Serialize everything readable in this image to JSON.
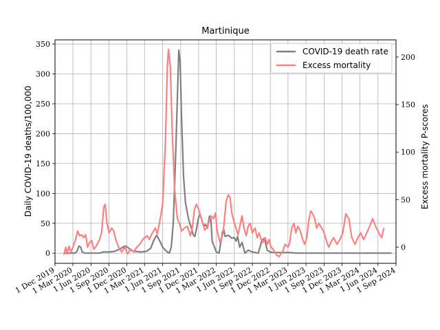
{
  "chart_data": {
    "type": "line",
    "title": "Martinique",
    "ylabel_left": "Daily COVID-19 deaths/100,000",
    "ylabel_right": "Excess mortality P-scores",
    "x_range": [
      "2019-12-01",
      "2024-09-01"
    ],
    "x_ticks": [
      {
        "date": "2019-12-01",
        "label": "1 Dec 2019"
      },
      {
        "date": "2020-03-01",
        "label": "1 Mar 2020"
      },
      {
        "date": "2020-06-01",
        "label": "1 Jun 2020"
      },
      {
        "date": "2020-09-01",
        "label": "1 Sep 2020"
      },
      {
        "date": "2020-12-01",
        "label": "1 Dec 2020"
      },
      {
        "date": "2021-03-01",
        "label": "1 Mar 2021"
      },
      {
        "date": "2021-06-01",
        "label": "1 Jun 2021"
      },
      {
        "date": "2021-09-01",
        "label": "1 Sep 2021"
      },
      {
        "date": "2021-12-01",
        "label": "1 Dec 2021"
      },
      {
        "date": "2022-03-01",
        "label": "1 Mar 2022"
      },
      {
        "date": "2022-06-01",
        "label": "1 Jun 2022"
      },
      {
        "date": "2022-09-01",
        "label": "1 Sep 2022"
      },
      {
        "date": "2022-12-01",
        "label": "1 Dec 2022"
      },
      {
        "date": "2023-03-01",
        "label": "1 Mar 2023"
      },
      {
        "date": "2023-06-01",
        "label": "1 Jun 2023"
      },
      {
        "date": "2023-09-01",
        "label": "1 Sep 2023"
      },
      {
        "date": "2023-12-01",
        "label": "1 Dec 2023"
      },
      {
        "date": "2024-03-01",
        "label": "1 Mar 2024"
      },
      {
        "date": "2024-06-01",
        "label": "1 Jun 2024"
      },
      {
        "date": "2024-09-01",
        "label": "1 Sep 2024"
      }
    ],
    "y_left_range": [
      -17,
      357
    ],
    "y_left_ticks": [
      0,
      50,
      100,
      150,
      200,
      250,
      300,
      350
    ],
    "y_right_range": [
      -17,
      218
    ],
    "y_right_ticks": [
      0,
      50,
      100,
      150,
      200
    ],
    "grid": true,
    "legend_position": "top-right",
    "series": [
      {
        "name": "COVID-19 death rate",
        "axis": "left",
        "color": "#7f7f7f",
        "points": [
          [
            "2020-01-15",
            0
          ],
          [
            "2020-02-15",
            0
          ],
          [
            "2020-03-10",
            0
          ],
          [
            "2020-03-22",
            3
          ],
          [
            "2020-04-01",
            12
          ],
          [
            "2020-04-10",
            10
          ],
          [
            "2020-04-18",
            2
          ],
          [
            "2020-05-01",
            0
          ],
          [
            "2020-06-01",
            0
          ],
          [
            "2020-07-15",
            0
          ],
          [
            "2020-08-01",
            2
          ],
          [
            "2020-09-01",
            2
          ],
          [
            "2020-10-01",
            3
          ],
          [
            "2020-11-01",
            8
          ],
          [
            "2020-11-20",
            12
          ],
          [
            "2020-12-05",
            10
          ],
          [
            "2020-12-20",
            5
          ],
          [
            "2021-01-10",
            3
          ],
          [
            "2021-02-10",
            2
          ],
          [
            "2021-03-10",
            3
          ],
          [
            "2021-04-01",
            8
          ],
          [
            "2021-04-15",
            20
          ],
          [
            "2021-05-01",
            30
          ],
          [
            "2021-05-15",
            22
          ],
          [
            "2021-06-01",
            10
          ],
          [
            "2021-06-20",
            3
          ],
          [
            "2021-07-05",
            0
          ],
          [
            "2021-07-15",
            10
          ],
          [
            "2021-07-25",
            50
          ],
          [
            "2021-08-05",
            150
          ],
          [
            "2021-08-15",
            260
          ],
          [
            "2021-08-22",
            340
          ],
          [
            "2021-08-29",
            320
          ],
          [
            "2021-09-05",
            230
          ],
          [
            "2021-09-15",
            130
          ],
          [
            "2021-09-25",
            85
          ],
          [
            "2021-10-10",
            58
          ],
          [
            "2021-10-25",
            42
          ],
          [
            "2021-11-05",
            30
          ],
          [
            "2021-11-12",
            28
          ],
          [
            "2021-11-20",
            40
          ],
          [
            "2021-12-01",
            60
          ],
          [
            "2021-12-08",
            65
          ],
          [
            "2021-12-18",
            55
          ],
          [
            "2021-12-28",
            45
          ],
          [
            "2022-01-05",
            48
          ],
          [
            "2022-01-15",
            42
          ],
          [
            "2022-01-25",
            62
          ],
          [
            "2022-02-01",
            58
          ],
          [
            "2022-02-08",
            20
          ],
          [
            "2022-02-20",
            10
          ],
          [
            "2022-03-01",
            2
          ],
          [
            "2022-03-15",
            0
          ],
          [
            "2022-03-25",
            20
          ],
          [
            "2022-04-01",
            35
          ],
          [
            "2022-04-08",
            40
          ],
          [
            "2022-04-15",
            28
          ],
          [
            "2022-05-01",
            30
          ],
          [
            "2022-05-20",
            25
          ],
          [
            "2022-06-01",
            26
          ],
          [
            "2022-06-10",
            20
          ],
          [
            "2022-06-18",
            28
          ],
          [
            "2022-06-28",
            10
          ],
          [
            "2022-07-10",
            18
          ],
          [
            "2022-07-25",
            0
          ],
          [
            "2022-08-10",
            5
          ],
          [
            "2022-09-01",
            2
          ],
          [
            "2022-10-01",
            0
          ],
          [
            "2022-10-20",
            22
          ],
          [
            "2022-11-01",
            25
          ],
          [
            "2022-11-15",
            5
          ],
          [
            "2022-12-01",
            2
          ],
          [
            "2022-12-20",
            1
          ],
          [
            "2023-01-10",
            1
          ],
          [
            "2023-02-10",
            1
          ],
          [
            "2023-03-10",
            1
          ],
          [
            "2023-04-10",
            0
          ],
          [
            "2023-05-15",
            0
          ],
          [
            "2023-07-01",
            0
          ],
          [
            "2024-08-10",
            0
          ]
        ]
      },
      {
        "name": "Excess mortality",
        "axis": "right",
        "color": "#ff7f7f",
        "points": [
          [
            "2020-01-15",
            -8
          ],
          [
            "2020-01-25",
            0
          ],
          [
            "2020-02-01",
            -7
          ],
          [
            "2020-02-10",
            1
          ],
          [
            "2020-02-20",
            -5
          ],
          [
            "2020-03-01",
            0
          ],
          [
            "2020-03-15",
            8
          ],
          [
            "2020-03-25",
            17
          ],
          [
            "2020-04-05",
            12
          ],
          [
            "2020-04-15",
            13
          ],
          [
            "2020-04-25",
            10
          ],
          [
            "2020-05-05",
            13
          ],
          [
            "2020-05-15",
            0
          ],
          [
            "2020-05-25",
            5
          ],
          [
            "2020-06-05",
            7
          ],
          [
            "2020-06-15",
            -2
          ],
          [
            "2020-06-25",
            0
          ],
          [
            "2020-07-05",
            4
          ],
          [
            "2020-07-15",
            8
          ],
          [
            "2020-07-25",
            15
          ],
          [
            "2020-08-05",
            42
          ],
          [
            "2020-08-12",
            45
          ],
          [
            "2020-08-22",
            25
          ],
          [
            "2020-09-01",
            15
          ],
          [
            "2020-09-15",
            20
          ],
          [
            "2020-09-25",
            17
          ],
          [
            "2020-10-05",
            8
          ],
          [
            "2020-10-20",
            0
          ],
          [
            "2020-11-05",
            -5
          ],
          [
            "2020-11-20",
            0
          ],
          [
            "2020-12-05",
            -7
          ],
          [
            "2020-12-20",
            -2
          ],
          [
            "2021-01-05",
            -5
          ],
          [
            "2021-01-20",
            0
          ],
          [
            "2021-02-05",
            3
          ],
          [
            "2021-02-20",
            8
          ],
          [
            "2021-03-01",
            10
          ],
          [
            "2021-03-15",
            12
          ],
          [
            "2021-03-25",
            8
          ],
          [
            "2021-04-10",
            15
          ],
          [
            "2021-04-25",
            20
          ],
          [
            "2021-05-05",
            14
          ],
          [
            "2021-05-20",
            30
          ],
          [
            "2021-06-01",
            45
          ],
          [
            "2021-06-15",
            110
          ],
          [
            "2021-06-25",
            190
          ],
          [
            "2021-07-01",
            208
          ],
          [
            "2021-07-10",
            190
          ],
          [
            "2021-07-20",
            120
          ],
          [
            "2021-08-01",
            60
          ],
          [
            "2021-08-15",
            30
          ],
          [
            "2021-08-25",
            25
          ],
          [
            "2021-09-05",
            17
          ],
          [
            "2021-09-20",
            20
          ],
          [
            "2021-10-05",
            22
          ],
          [
            "2021-10-20",
            12
          ],
          [
            "2021-10-30",
            20
          ],
          [
            "2021-11-10",
            40
          ],
          [
            "2021-11-20",
            45
          ],
          [
            "2021-12-01",
            40
          ],
          [
            "2021-12-15",
            30
          ],
          [
            "2022-01-01",
            18
          ],
          [
            "2022-01-15",
            21
          ],
          [
            "2022-02-01",
            33
          ],
          [
            "2022-02-15",
            30
          ],
          [
            "2022-02-25",
            36
          ],
          [
            "2022-03-05",
            18
          ],
          [
            "2022-03-20",
            5
          ],
          [
            "2022-04-05",
            15
          ],
          [
            "2022-04-20",
            48
          ],
          [
            "2022-05-01",
            55
          ],
          [
            "2022-05-10",
            52
          ],
          [
            "2022-05-20",
            35
          ],
          [
            "2022-06-01",
            25
          ],
          [
            "2022-06-10",
            20
          ],
          [
            "2022-06-20",
            13
          ],
          [
            "2022-06-30",
            23
          ],
          [
            "2022-07-10",
            33
          ],
          [
            "2022-07-20",
            20
          ],
          [
            "2022-08-01",
            12
          ],
          [
            "2022-08-10",
            22
          ],
          [
            "2022-08-20",
            25
          ],
          [
            "2022-09-01",
            15
          ],
          [
            "2022-09-15",
            20
          ],
          [
            "2022-09-25",
            10
          ],
          [
            "2022-10-05",
            15
          ],
          [
            "2022-10-15",
            8
          ],
          [
            "2022-10-25",
            5
          ],
          [
            "2022-11-05",
            10
          ],
          [
            "2022-11-15",
            3
          ],
          [
            "2022-11-25",
            8
          ],
          [
            "2022-12-05",
            0
          ],
          [
            "2022-12-15",
            -2
          ],
          [
            "2023-01-01",
            -8
          ],
          [
            "2023-01-15",
            -10
          ],
          [
            "2023-02-01",
            -5
          ],
          [
            "2023-02-15",
            3
          ],
          [
            "2023-03-01",
            0
          ],
          [
            "2023-03-10",
            5
          ],
          [
            "2023-03-20",
            20
          ],
          [
            "2023-04-01",
            25
          ],
          [
            "2023-04-10",
            15
          ],
          [
            "2023-04-20",
            22
          ],
          [
            "2023-05-01",
            18
          ],
          [
            "2023-05-15",
            8
          ],
          [
            "2023-05-25",
            3
          ],
          [
            "2023-06-05",
            10
          ],
          [
            "2023-06-15",
            28
          ],
          [
            "2023-06-25",
            38
          ],
          [
            "2023-07-05",
            35
          ],
          [
            "2023-07-15",
            30
          ],
          [
            "2023-07-25",
            20
          ],
          [
            "2023-08-05",
            25
          ],
          [
            "2023-08-20",
            20
          ],
          [
            "2023-09-01",
            15
          ],
          [
            "2023-09-15",
            5
          ],
          [
            "2023-09-25",
            0
          ],
          [
            "2023-10-05",
            5
          ],
          [
            "2023-10-20",
            10
          ],
          [
            "2023-11-05",
            3
          ],
          [
            "2023-11-20",
            8
          ],
          [
            "2023-12-05",
            15
          ],
          [
            "2023-12-20",
            35
          ],
          [
            "2024-01-05",
            30
          ],
          [
            "2024-01-20",
            10
          ],
          [
            "2024-02-05",
            3
          ],
          [
            "2024-02-20",
            10
          ],
          [
            "2024-03-05",
            15
          ],
          [
            "2024-03-20",
            8
          ],
          [
            "2024-04-05",
            15
          ],
          [
            "2024-04-20",
            22
          ],
          [
            "2024-05-05",
            30
          ],
          [
            "2024-05-20",
            22
          ],
          [
            "2024-06-05",
            15
          ],
          [
            "2024-06-20",
            10
          ],
          [
            "2024-07-01",
            20
          ]
        ]
      }
    ]
  }
}
